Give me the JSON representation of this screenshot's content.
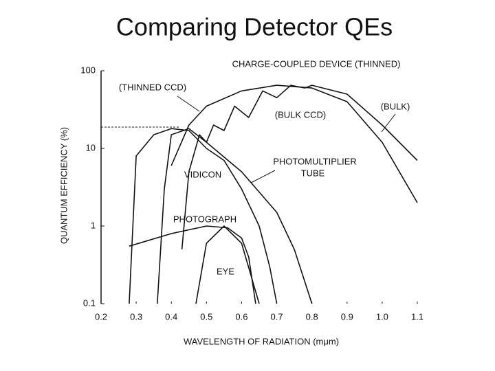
{
  "chart_data": {
    "type": "line",
    "title": "Comparing Detector QEs",
    "x_label": "WAVELENGTH OF RADIATION (mμm)",
    "y_label": "QUANTUM EFFICIENCY (%)",
    "xlim": [
      0.2,
      1.1
    ],
    "xticks": [
      0.2,
      0.3,
      0.4,
      0.5,
      0.6,
      0.7,
      0.8,
      0.9,
      {
        "value": 1,
        "label": "1.0"
      },
      1.1
    ],
    "ylim": [
      0.1,
      100
    ],
    "yticks": [
      0.1,
      1,
      10,
      100
    ],
    "log_y": true,
    "color": "#111111",
    "annotations": [
      "CHARGE-COUPLED DEVICE (THINNED)",
      "(THINNED CCD)",
      "(BULK)",
      "(BULK CCD)",
      "PHOTOMULTIPLIER",
      "TUBE",
      "VIDICON",
      "PHOTOGRAPH",
      "EYE"
    ],
    "series": [
      {
        "x": [
          0.4,
          0.45,
          0.5,
          0.6,
          0.7,
          0.8,
          0.9,
          1.0,
          1.1
        ],
        "values": [
          6,
          20,
          35,
          55,
          65,
          60,
          40,
          12,
          2
        ]
      },
      {
        "x": [
          0.43,
          0.45,
          0.48,
          0.5,
          0.52,
          0.55,
          0.58,
          0.62,
          0.66,
          0.7,
          0.74,
          0.78,
          0.8,
          0.9,
          1.0,
          1.1
        ],
        "values": [
          0.5,
          5,
          15,
          12,
          20,
          17,
          35,
          25,
          55,
          45,
          65,
          60,
          65,
          50,
          20,
          7
        ]
      },
      {
        "x": [
          0.28,
          0.3,
          0.35,
          0.4,
          0.45,
          0.5,
          0.55,
          0.6,
          0.65,
          0.68,
          0.7
        ],
        "values": [
          0.1,
          8,
          15,
          18,
          17,
          10,
          7,
          3,
          1,
          0.3,
          0.1
        ]
      },
      {
        "x": [
          0.36,
          0.38,
          0.4,
          0.45,
          0.5,
          0.6,
          0.7,
          0.75,
          0.8
        ],
        "values": [
          0.1,
          3,
          15,
          18,
          12,
          5,
          1.5,
          0.5,
          0.1
        ]
      },
      {
        "x": [
          0.28,
          0.4,
          0.5,
          0.56,
          0.6,
          0.62,
          0.64
        ],
        "values": [
          0.55,
          0.8,
          1.0,
          0.95,
          0.7,
          0.4,
          0.1
        ]
      },
      {
        "x": [
          0.47,
          0.5,
          0.55,
          0.6,
          0.65
        ],
        "values": [
          0.1,
          0.6,
          1.0,
          0.6,
          0.1
        ]
      }
    ]
  }
}
